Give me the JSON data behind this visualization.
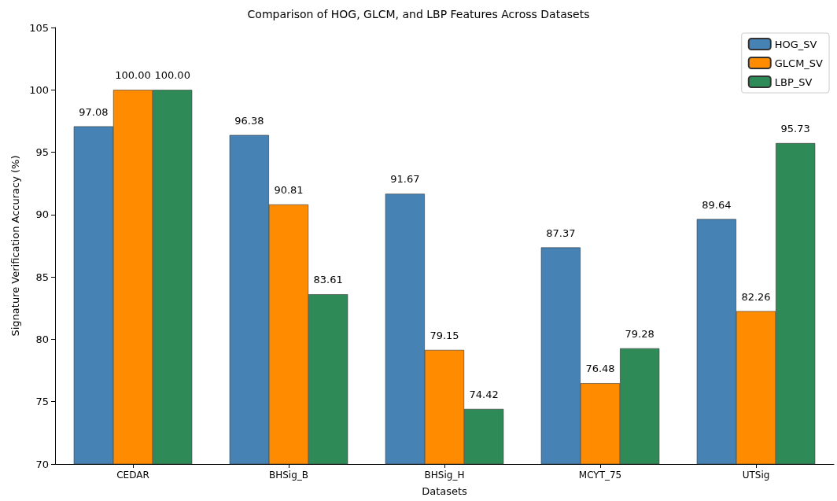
{
  "chart_data": {
    "type": "bar",
    "title": "Comparison of HOG, GLCM, and LBP Features Across Datasets",
    "xlabel": "Datasets",
    "ylabel": "Signature Verification Accuracy (%)",
    "categories": [
      "CEDAR",
      "BHSig_B",
      "BHSig_H",
      "MCYT_75",
      "UTSig"
    ],
    "series": [
      {
        "name": "HOG_SV",
        "color": "#4682b4",
        "values": [
          97.08,
          96.38,
          91.67,
          87.37,
          89.64
        ],
        "value_labels": [
          "97.08",
          "96.38",
          "91.67",
          "87.37",
          "89.64"
        ]
      },
      {
        "name": "GLCM_SV",
        "color": "#ff8c00",
        "values": [
          100,
          90.81,
          79.15,
          76.48,
          82.26
        ],
        "value_labels": [
          "100.00",
          "90.81",
          "79.15",
          "76.48",
          "82.26"
        ]
      },
      {
        "name": "LBP_SV",
        "color": "#2e8b57",
        "values": [
          100,
          83.61,
          74.42,
          79.28,
          95.73
        ],
        "value_labels": [
          "100.00",
          "83.61",
          "74.42",
          "79.28",
          "95.73"
        ]
      }
    ],
    "ylim": [
      70,
      105
    ],
    "yticks": [
      70,
      75,
      80,
      85,
      90,
      95,
      100,
      105
    ],
    "grid": false,
    "legend": "top right"
  }
}
